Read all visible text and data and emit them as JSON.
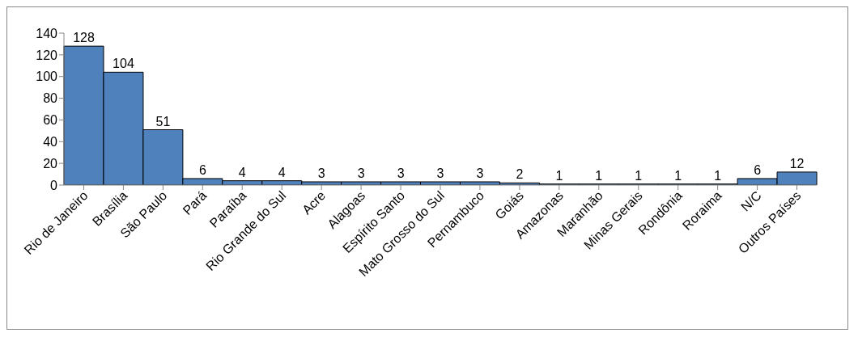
{
  "chart_data": {
    "type": "bar",
    "categories": [
      "Rio de Janeiro",
      "Brasília",
      "São Paulo",
      "Pará",
      "Paraíba",
      "Rio Grande do Sul",
      "Acre",
      "Alagoas",
      "Espírito Santo",
      "Mato Grosso do Sul",
      "Pernambuco",
      "Goiás",
      "Amazonas",
      "Maranhão",
      "Minas Gerais",
      "Rondônia",
      "Roraima",
      "N/C",
      "Outros Países"
    ],
    "values": [
      128,
      104,
      51,
      6,
      4,
      4,
      3,
      3,
      3,
      3,
      3,
      2,
      1,
      1,
      1,
      1,
      1,
      6,
      12
    ],
    "color": "#4f81bd",
    "ylim": [
      0,
      140
    ],
    "yticks": [
      0,
      20,
      40,
      60,
      80,
      100,
      120,
      140
    ],
    "data_labels": true,
    "grid": false
  }
}
